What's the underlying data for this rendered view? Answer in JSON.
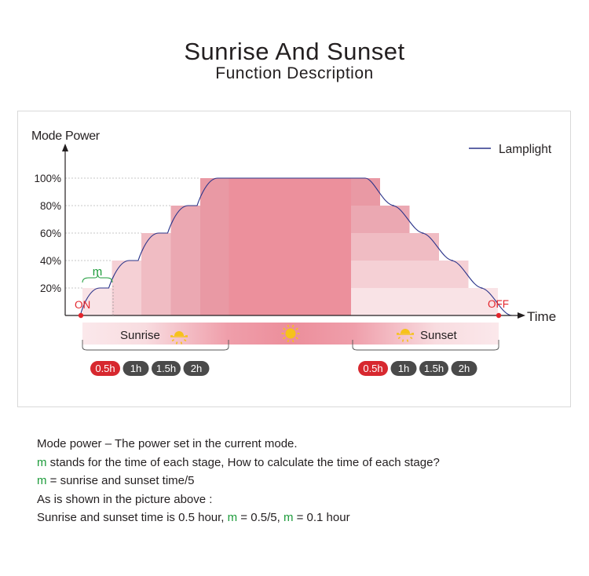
{
  "title": "Sunrise And Sunset",
  "subtitle": "Function Description",
  "chart_data": {
    "type": "area",
    "ylabel": "Mode Power",
    "xlabel": "Time",
    "yticks": [
      "20%",
      "40%",
      "60%",
      "80%",
      "100%"
    ],
    "ylim": [
      0,
      100
    ],
    "legend": {
      "label": "Lamplight",
      "position": "top-right"
    },
    "start_label": "ON",
    "end_label": "OFF",
    "stage_label": "m",
    "stages_up": [
      20,
      40,
      60,
      80,
      100
    ],
    "stages_down": [
      100,
      80,
      60,
      40,
      20
    ],
    "phases": {
      "sunrise": "Sunrise",
      "sunset": "Sunset"
    },
    "duration_options": {
      "sunrise": [
        "0.5h",
        "1h",
        "1.5h",
        "2h"
      ],
      "sunset": [
        "0.5h",
        "1h",
        "1.5h",
        "2h"
      ],
      "selected": "0.5h"
    },
    "colors": {
      "lamplight": "#2a3389",
      "selected_option": "#d7282f",
      "option": "#4a4a4a",
      "stage_label": "#1c9b3a",
      "on_off": "#e3242b"
    }
  },
  "description": {
    "line1": "Mode power – The power set in the current mode.",
    "line2_m": "m",
    "line2_rest": " stands for the time of each stage, How to calculate the time of each stage?",
    "line3_m": "m",
    "line3_rest": " = sunrise and sunset time/5",
    "line4": "As is shown in the picture above :",
    "line5_a": "Sunrise and sunset time is 0.5 hour, ",
    "line5_m1": "m",
    "line5_b": " = 0.5/5, ",
    "line5_m2": "m",
    "line5_c": " = 0.1 hour"
  }
}
